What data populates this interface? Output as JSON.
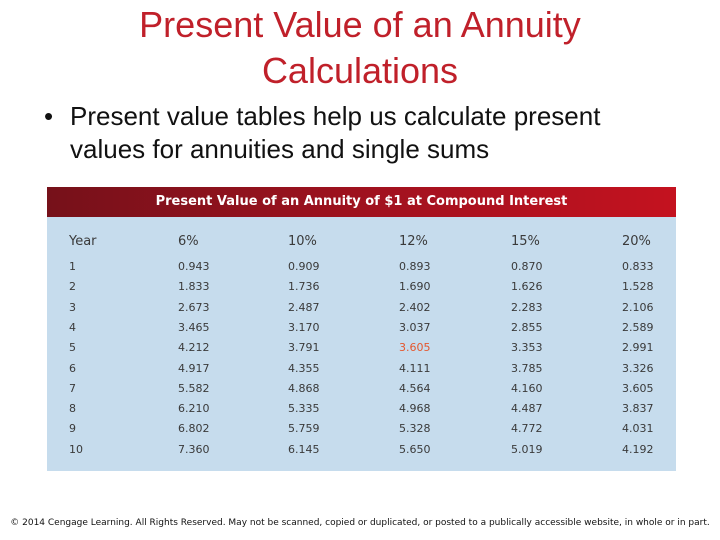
{
  "slide": {
    "title_line1": "Present Value of an Annuity",
    "title_line2": "Calculations",
    "bullet_symbol": "•",
    "bullet_text": "Present value tables help us calculate present values for annuities and single sums",
    "footer": "© 2014 Cengage Learning. All Rights Reserved. May not be scanned, copied or duplicated, or posted to a publically accessible website, in whole or in part."
  },
  "table": {
    "title": "Present Value of an Annuity of $1 at Compound Interest",
    "columns": [
      "Year",
      "6%",
      "10%",
      "12%",
      "15%",
      "20%"
    ],
    "rows": [
      [
        "1",
        "0.943",
        "0.909",
        "0.893",
        "0.870",
        "0.833"
      ],
      [
        "2",
        "1.833",
        "1.736",
        "1.690",
        "1.626",
        "1.528"
      ],
      [
        "3",
        "2.673",
        "2.487",
        "2.402",
        "2.283",
        "2.106"
      ],
      [
        "4",
        "3.465",
        "3.170",
        "3.037",
        "2.855",
        "2.589"
      ],
      [
        "5",
        "4.212",
        "3.791",
        "3.605",
        "3.353",
        "2.991"
      ],
      [
        "6",
        "4.917",
        "4.355",
        "4.111",
        "3.785",
        "3.326"
      ],
      [
        "7",
        "5.582",
        "4.868",
        "4.564",
        "4.160",
        "3.605"
      ],
      [
        "8",
        "6.210",
        "5.335",
        "4.968",
        "4.487",
        "3.837"
      ],
      [
        "9",
        "6.802",
        "5.759",
        "5.328",
        "4.772",
        "4.031"
      ],
      [
        "10",
        "7.360",
        "6.145",
        "5.650",
        "5.019",
        "4.192"
      ]
    ],
    "highlight_cell": {
      "row": 4,
      "col": 3
    },
    "colors": {
      "title_text": "#c0202a",
      "header_band_start": "#76111a",
      "header_band_end": "#c4121f",
      "table_background": "#c6dced",
      "highlight_text": "#e4572e"
    }
  }
}
